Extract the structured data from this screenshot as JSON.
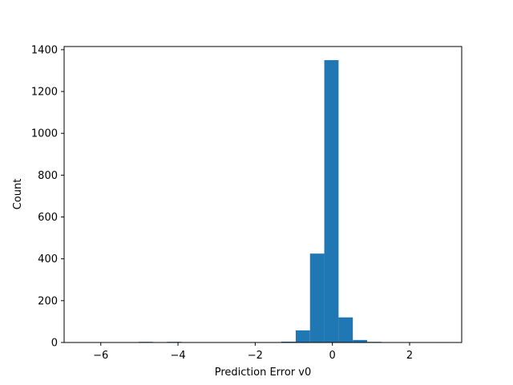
{
  "chart_data": {
    "type": "bar",
    "title": "",
    "xlabel": "Prediction Error v0",
    "ylabel": "Count",
    "xlim": [
      -6.95,
      3.35
    ],
    "ylim": [
      0,
      1415
    ],
    "xticks": [
      -6,
      -4,
      -2,
      0,
      2
    ],
    "yticks": [
      0,
      200,
      400,
      600,
      800,
      1000,
      1200,
      1400
    ],
    "grid": false,
    "legend": "none",
    "bar_color": "#1f77b4",
    "bins": [
      {
        "x0": -6.5,
        "x1": -6.13,
        "count": 1
      },
      {
        "x0": -6.13,
        "x1": -5.76,
        "count": 0
      },
      {
        "x0": -5.76,
        "x1": -5.39,
        "count": 0
      },
      {
        "x0": -5.39,
        "x1": -5.02,
        "count": 0
      },
      {
        "x0": -5.02,
        "x1": -4.65,
        "count": 3
      },
      {
        "x0": -4.65,
        "x1": -4.28,
        "count": 0
      },
      {
        "x0": -4.28,
        "x1": -3.91,
        "count": 3
      },
      {
        "x0": -3.91,
        "x1": -3.54,
        "count": 0
      },
      {
        "x0": -3.54,
        "x1": -3.17,
        "count": 0
      },
      {
        "x0": -3.17,
        "x1": -2.8,
        "count": 0
      },
      {
        "x0": -2.8,
        "x1": -2.43,
        "count": 0
      },
      {
        "x0": -2.43,
        "x1": -2.06,
        "count": 0
      },
      {
        "x0": -2.06,
        "x1": -1.69,
        "count": 2
      },
      {
        "x0": -1.69,
        "x1": -1.32,
        "count": 2
      },
      {
        "x0": -1.32,
        "x1": -0.95,
        "count": 4
      },
      {
        "x0": -0.95,
        "x1": -0.58,
        "count": 58
      },
      {
        "x0": -0.58,
        "x1": -0.21,
        "count": 425
      },
      {
        "x0": -0.21,
        "x1": 0.16,
        "count": 1350
      },
      {
        "x0": 0.16,
        "x1": 0.53,
        "count": 120
      },
      {
        "x0": 0.53,
        "x1": 0.9,
        "count": 12
      },
      {
        "x0": 0.9,
        "x1": 1.27,
        "count": 3
      },
      {
        "x0": 1.27,
        "x1": 1.64,
        "count": 0
      },
      {
        "x0": 1.64,
        "x1": 2.01,
        "count": 0
      },
      {
        "x0": 2.01,
        "x1": 2.38,
        "count": 0
      },
      {
        "x0": 2.38,
        "x1": 2.75,
        "count": 1
      },
      {
        "x0": 2.75,
        "x1": 2.9,
        "count": 2
      }
    ]
  }
}
